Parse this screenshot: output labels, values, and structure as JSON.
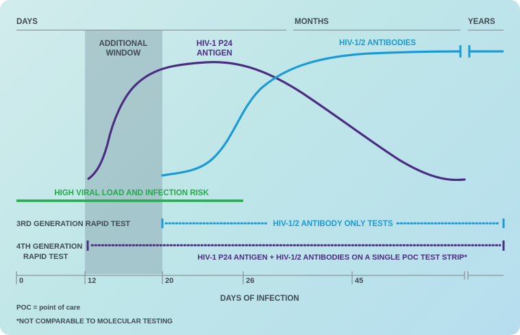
{
  "colors": {
    "antigen": "#4b2c83",
    "antibody": "#1a9ad6",
    "viral": "#23aa4a",
    "scale": "#8a959c",
    "window": "#7f9aa4",
    "text_dark": "#3d4a53"
  },
  "timescale": {
    "days": "DAYS",
    "months": "MONTHS",
    "years": "YEARS"
  },
  "window_label": [
    "ADDITIONAL",
    "WINDOW"
  ],
  "curves": {
    "antigen_label": [
      "HIV-1 P24",
      "ANTIGEN"
    ],
    "antibody_label": "HIV-1/2 ANTIBODIES"
  },
  "viral_load": "HIGH VIRAL LOAD AND INFECTION RISK",
  "tests": {
    "gen3": {
      "label": "3RD GENERATION RAPID TEST",
      "desc": "HIV-1/2 ANTIBODY ONLY TESTS"
    },
    "gen4": {
      "label": [
        "4TH GENERATION",
        "RAPID TEST"
      ],
      "desc": "HIV-1 P24 ANTIGEN + HIV-1/2 ANTIBODIES ON A SINGLE POC TEST STRIP*"
    }
  },
  "axis": {
    "ticks": [
      "0",
      "12",
      "20",
      "26",
      "45"
    ],
    "title": "DAYS OF INFECTION"
  },
  "footnotes": {
    "poc": "POC = point of care",
    "note": "*NOT COMPARABLE TO MOLECULAR TESTING"
  }
}
